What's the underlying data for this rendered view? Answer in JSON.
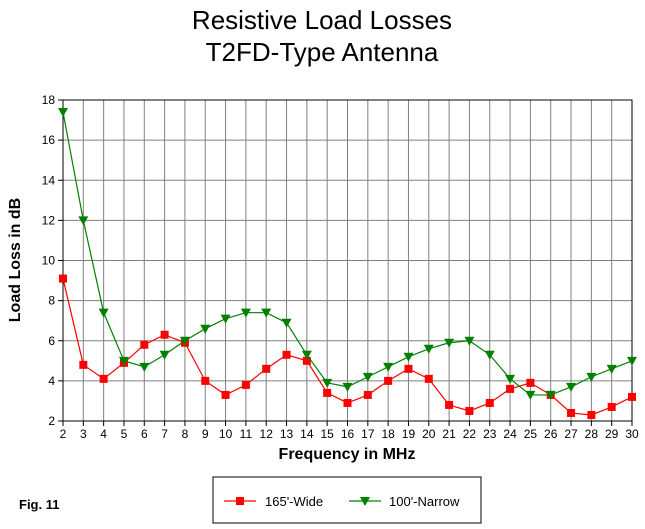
{
  "chart_data": {
    "type": "line",
    "title": "Resistive Load Losses",
    "subtitle": "T2FD-Type Antenna",
    "xlabel": "Frequency in MHz",
    "ylabel": "Load Loss in dB",
    "x": [
      2,
      3,
      4,
      5,
      6,
      7,
      8,
      9,
      10,
      11,
      12,
      13,
      14,
      15,
      16,
      17,
      18,
      19,
      20,
      21,
      22,
      23,
      24,
      25,
      26,
      27,
      28,
      29,
      30
    ],
    "xlim": [
      2,
      30
    ],
    "ylim": [
      2,
      18
    ],
    "yticks": [
      2,
      4,
      6,
      8,
      10,
      12,
      14,
      16,
      18
    ],
    "grid": true,
    "legend_position": "bottom-center",
    "series": [
      {
        "name": "165'-Wide",
        "color": "#ff0000",
        "marker": "square",
        "values": [
          9.1,
          4.8,
          4.1,
          4.9,
          5.8,
          6.3,
          5.9,
          4.0,
          3.3,
          3.8,
          4.6,
          5.3,
          5.0,
          3.4,
          2.9,
          3.3,
          4.0,
          4.6,
          4.1,
          2.8,
          2.5,
          2.9,
          3.6,
          3.9,
          3.3,
          2.4,
          2.3,
          2.7,
          3.2
        ]
      },
      {
        "name": "100'-Narrow",
        "color": "#008000",
        "marker": "triangle-down",
        "values": [
          17.4,
          12.0,
          7.4,
          5.0,
          4.7,
          5.3,
          6.0,
          6.6,
          7.1,
          7.4,
          7.4,
          6.9,
          5.3,
          3.9,
          3.7,
          4.2,
          4.7,
          5.2,
          5.6,
          5.9,
          6.0,
          5.3,
          4.1,
          3.3,
          3.3,
          3.7,
          4.2,
          4.6,
          5.0
        ]
      }
    ]
  },
  "figure_label": "Fig. 11"
}
